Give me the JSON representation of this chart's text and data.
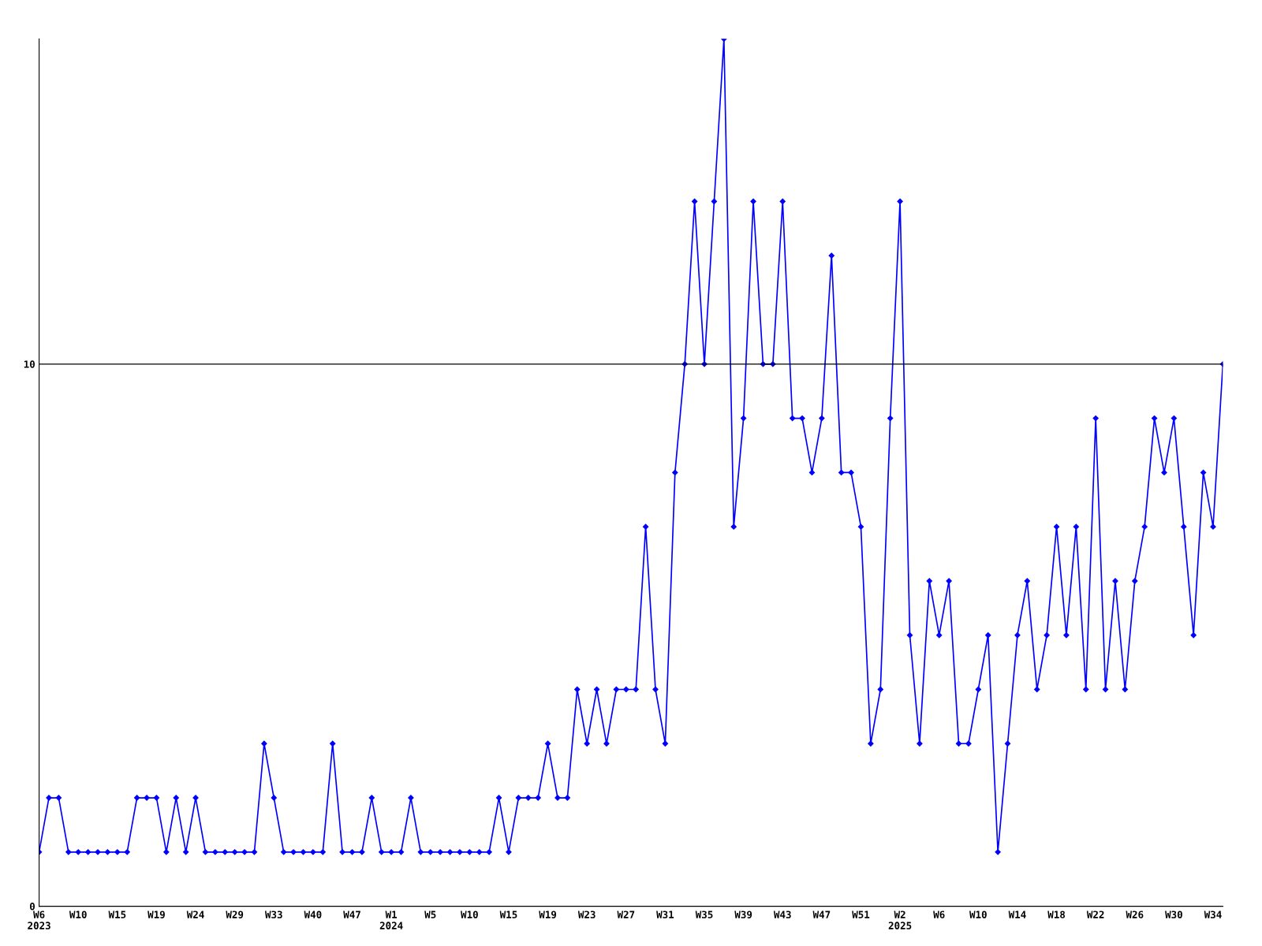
{
  "chart_data": {
    "type": "line",
    "categories": [
      "W6\n2023",
      null,
      null,
      null,
      "W10",
      null,
      null,
      null,
      "W15",
      null,
      null,
      null,
      "W19",
      null,
      null,
      null,
      "W24",
      null,
      null,
      null,
      "W29",
      null,
      null,
      null,
      "W33",
      null,
      null,
      null,
      "W40",
      null,
      null,
      null,
      "W47",
      null,
      null,
      null,
      "W1\n2024",
      null,
      null,
      null,
      "W5",
      null,
      null,
      null,
      "W10",
      null,
      null,
      null,
      "W15",
      null,
      null,
      null,
      "W19",
      null,
      null,
      null,
      "W23",
      null,
      null,
      null,
      "W27",
      null,
      null,
      null,
      "W31",
      null,
      null,
      null,
      "W35",
      null,
      null,
      null,
      "W39",
      null,
      null,
      null,
      "W43",
      null,
      null,
      null,
      "W47",
      null,
      null,
      null,
      "W51",
      null,
      null,
      null,
      "W2\n2025",
      null,
      null,
      null,
      "W6",
      null,
      null,
      null,
      "W10",
      null,
      null,
      null,
      "W14",
      null,
      null,
      null,
      "W18",
      null,
      null,
      null,
      "W22",
      null,
      null,
      null,
      "W26",
      null,
      null,
      null,
      "W30",
      null,
      null,
      null,
      "W34",
      null
    ],
    "series": [
      {
        "color": "#0000ff",
        "values": [
          1,
          2,
          2,
          1,
          1,
          1,
          1,
          1,
          1,
          1,
          2,
          2,
          2,
          1,
          2,
          1,
          2,
          1,
          1,
          1,
          1,
          1,
          1,
          3,
          2,
          1,
          1,
          1,
          1,
          1,
          3,
          1,
          1,
          1,
          2,
          1,
          1,
          1,
          2,
          1,
          1,
          1,
          1,
          1,
          1,
          1,
          1,
          2,
          1,
          2,
          2,
          2,
          3,
          2,
          2,
          4,
          3,
          4,
          3,
          4,
          4,
          4,
          7,
          4,
          3,
          8,
          10,
          13,
          10,
          13,
          16,
          7,
          9,
          13,
          10,
          10,
          13,
          9,
          9,
          8,
          9,
          12,
          8,
          8,
          7,
          3,
          4,
          9,
          13,
          5,
          3,
          6,
          5,
          6,
          3,
          3,
          4,
          5,
          1,
          3,
          5,
          6,
          4,
          5,
          7,
          5,
          7,
          4,
          9,
          4,
          6,
          4,
          6,
          7,
          9,
          8,
          9,
          7,
          5,
          8,
          7,
          10
        ]
      }
    ],
    "ylim": [
      0,
      16
    ],
    "yticks": [
      0,
      10
    ],
    "ref_lines": [
      {
        "axis": "y",
        "value": 10,
        "color": "#000000"
      }
    ],
    "marker": "diamond"
  }
}
